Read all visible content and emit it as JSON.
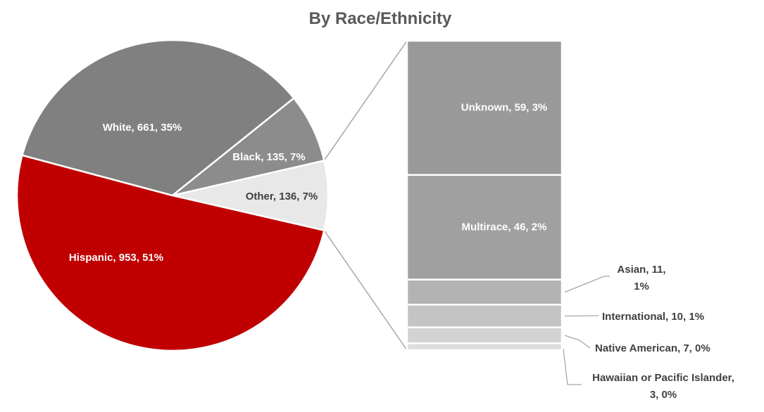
{
  "chart_data": {
    "type": "pie",
    "subtype": "bar-of-pie",
    "title": "By Race/Ethnicity",
    "pie": [
      {
        "name": "Hispanic",
        "value": 953,
        "percent": "51%",
        "label": "Hispanic, 953, 51%",
        "color": "#C00000"
      },
      {
        "name": "White",
        "value": 661,
        "percent": "35%",
        "label": "White, 661, 35%",
        "color": "#808080"
      },
      {
        "name": "Black",
        "value": 135,
        "percent": "7%",
        "label": "Black, 135, 7%",
        "color": "#8C8C8C"
      },
      {
        "name": "Other",
        "value": 136,
        "percent": "7%",
        "label": "Other, 136, 7%",
        "color": "#E8E8E8"
      }
    ],
    "other_breakdown": [
      {
        "name": "Unknown",
        "value": 59,
        "percent": "3%",
        "label_lines": [
          "Unknown, 59, 3%"
        ],
        "color": "#999999"
      },
      {
        "name": "Multirace",
        "value": 46,
        "percent": "2%",
        "label_lines": [
          "Multirace, 46, 2%"
        ],
        "color": "#A0A0A0"
      },
      {
        "name": "Asian",
        "value": 11,
        "percent": "1%",
        "label_lines": [
          "Asian, 11,",
          "1%"
        ],
        "color": "#B3B3B3"
      },
      {
        "name": "International",
        "value": 10,
        "percent": "1%",
        "label_lines": [
          "International, 10, 1%"
        ],
        "color": "#C4C4C4"
      },
      {
        "name": "Native American",
        "value": 7,
        "percent": "0%",
        "label_lines": [
          "Native American, 7, 0%"
        ],
        "color": "#D3D3D3"
      },
      {
        "name": "Hawaiian or Pacific Islander",
        "value": 3,
        "percent": "0%",
        "label_lines": [
          "Hawaiian or Pacific Islander,",
          "3, 0%"
        ],
        "color": "#DDDDDD"
      }
    ],
    "legend": "none"
  }
}
